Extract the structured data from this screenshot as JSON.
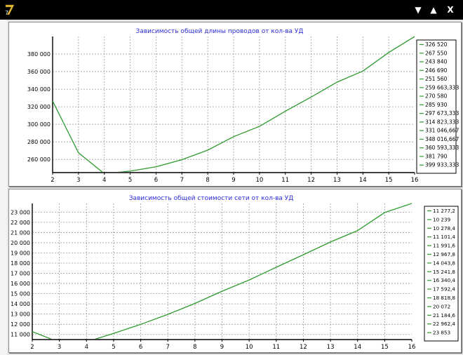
{
  "window": {
    "logo_text": "7",
    "controls": {
      "collapse": "▼",
      "expand": "▲",
      "close": "X"
    }
  },
  "charts": [
    {
      "id": "length",
      "title": "Зависимость общей длины проводов от кол-ва УД",
      "y_ticks": [
        "260 000",
        "280 000",
        "300 000",
        "320 000",
        "340 000",
        "360 000",
        "380 000"
      ],
      "x_ticks": [
        "2",
        "3",
        "4",
        "5",
        "6",
        "7",
        "8",
        "9",
        "10",
        "11",
        "12",
        "13",
        "14",
        "15",
        "16"
      ],
      "legend": [
        "326 520",
        "267 550",
        "243 840",
        "246 690",
        "251 560",
        "259 663,333",
        "270 580",
        "285 930",
        "297 673,333",
        "314 823,333",
        "331 046,667",
        "348 016,667",
        "360 593,333",
        "381 790",
        "399 933,333"
      ]
    },
    {
      "id": "cost",
      "title": "Зависимость общей стоимости сети от кол-ва УД",
      "y_ticks": [
        "11 000",
        "12 000",
        "13 000",
        "14 000",
        "15 000",
        "16 000",
        "17 000",
        "18 000",
        "19 000",
        "20 000",
        "21 000",
        "22 000",
        "23 000"
      ],
      "x_ticks": [
        "2",
        "3",
        "4",
        "5",
        "6",
        "7",
        "8",
        "9",
        "10",
        "11",
        "12",
        "13",
        "14",
        "15",
        "16"
      ],
      "legend": [
        "11 277,2",
        "10 239",
        "10 278,4",
        "11 101,4",
        "11 991,6",
        "12 967,8",
        "14 043,8",
        "15 241,8",
        "16 340,4",
        "17 592,4",
        "18 818,8",
        "20 072",
        "21 184,6",
        "22 962,4",
        "23 853"
      ]
    }
  ],
  "chart_data": [
    {
      "type": "line",
      "title": "Зависимость общей длины проводов от кол-ва УД",
      "x": [
        2,
        3,
        4,
        5,
        6,
        7,
        8,
        9,
        10,
        11,
        12,
        13,
        14,
        15,
        16
      ],
      "series": [
        {
          "values": [
            326520,
            267550,
            243840,
            246690,
            251560,
            259663.333,
            270580,
            285930,
            297673.333,
            314823.333,
            331046.667,
            348016.667,
            360593.333,
            381790,
            399933.333
          ]
        }
      ],
      "xlim": [
        2,
        16
      ],
      "ylim": [
        245000,
        400000
      ],
      "grid": true,
      "line_color": "#2f9a2f"
    },
    {
      "type": "line",
      "title": "Зависимость общей стоимости сети от кол-ва УД",
      "x": [
        2,
        3,
        4,
        5,
        6,
        7,
        8,
        9,
        10,
        11,
        12,
        13,
        14,
        15,
        16
      ],
      "series": [
        {
          "values": [
            11277.2,
            10239,
            10278.4,
            11101.4,
            11991.6,
            12967.8,
            14043.8,
            15241.8,
            16340.4,
            17592.4,
            18818.8,
            20072,
            21184.6,
            22962.4,
            23853
          ]
        }
      ],
      "xlim": [
        2,
        16
      ],
      "ylim": [
        10500,
        23850
      ],
      "grid": true,
      "line_color": "#2f9a2f"
    }
  ]
}
